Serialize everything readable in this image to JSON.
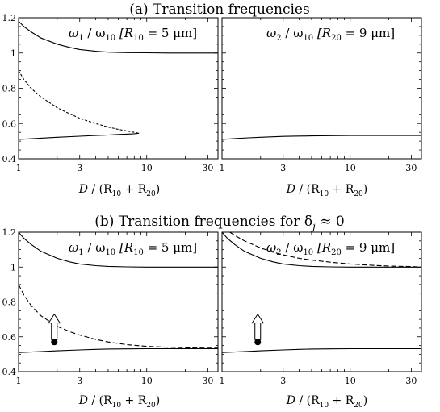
{
  "panel_a_title": "(a)  Transition frequencies",
  "panel_b_title": "(b)  Transition frequencies for δ",
  "panel_b_title_sub": "j",
  "panel_b_title_tail": " ≈ 0",
  "xlabel": {
    "main": "D",
    "pre": " / (R",
    "sub1": "10",
    "mid": " + R",
    "sub2": "20",
    "post": ")"
  },
  "panel_labels": {
    "left": {
      "w": "ω",
      "sub": "1",
      "over": " / ω",
      "sub2": "10",
      "bracket": "  [R",
      "rsub": "10",
      "tail": " = 5 μm]"
    },
    "right": {
      "w": "ω",
      "sub": "2",
      "over": " / ω",
      "sub2": "10",
      "bracket": "  [R",
      "rsub": "20",
      "tail": " = 9 μm]"
    }
  },
  "chart_data": [
    {
      "id": "a-left",
      "type": "line",
      "xscale": "log",
      "xlim": [
        1,
        36
      ],
      "ylim": [
        0.4,
        1.2
      ],
      "xticks": [
        1,
        3,
        10,
        30
      ],
      "yticks": [
        0.4,
        0.6,
        0.8,
        1.0,
        1.2
      ],
      "ytick_labels": [
        "0.4",
        "0.6",
        "0.8",
        "1",
        "1.2"
      ],
      "series": [
        {
          "style": "solid",
          "x": [
            1,
            1.1,
            1.25,
            1.5,
            2,
            2.5,
            3,
            4,
            5,
            7,
            10,
            15,
            20,
            30,
            36
          ],
          "y": [
            1.18,
            1.15,
            1.12,
            1.085,
            1.05,
            1.032,
            1.02,
            1.01,
            1.005,
            1.002,
            1.001,
            1.0,
            1.0,
            1.0,
            1.0
          ]
        },
        {
          "style": "dashed",
          "x": [
            1,
            1.1,
            1.25,
            1.5,
            2,
            2.5,
            3,
            4,
            5,
            6,
            7,
            8,
            8.7
          ],
          "y": [
            0.9,
            0.85,
            0.8,
            0.75,
            0.69,
            0.655,
            0.63,
            0.6,
            0.58,
            0.567,
            0.558,
            0.55,
            0.545
          ]
        },
        {
          "style": "solid",
          "x": [
            1,
            1.2,
            1.5,
            2,
            3,
            4,
            5,
            6,
            7,
            8,
            8.7
          ],
          "y": [
            0.51,
            0.513,
            0.517,
            0.522,
            0.528,
            0.532,
            0.535,
            0.538,
            0.54,
            0.542,
            0.545
          ]
        }
      ]
    },
    {
      "id": "a-right",
      "type": "line",
      "xscale": "log",
      "xlim": [
        1,
        36
      ],
      "ylim": [
        0.4,
        1.2
      ],
      "xticks": [
        1,
        3,
        10,
        30
      ],
      "yticks": [
        0.4,
        0.6,
        0.8,
        1.0,
        1.2
      ],
      "ytick_labels": [
        "",
        "",
        "",
        "",
        ""
      ],
      "series": [
        {
          "style": "solid",
          "x": [
            1,
            1.3,
            1.6,
            2,
            2.5,
            3,
            4,
            5,
            7,
            10,
            15,
            20,
            30,
            36
          ],
          "y": [
            0.51,
            0.515,
            0.519,
            0.522,
            0.525,
            0.527,
            0.529,
            0.53,
            0.531,
            0.532,
            0.532,
            0.532,
            0.532,
            0.532
          ]
        }
      ]
    },
    {
      "id": "b-left",
      "type": "line",
      "xscale": "log",
      "xlim": [
        1,
        36
      ],
      "ylim": [
        0.4,
        1.2
      ],
      "xticks": [
        1,
        3,
        10,
        30
      ],
      "yticks": [
        0.4,
        0.6,
        0.8,
        1.0,
        1.2
      ],
      "ytick_labels": [
        "0.4",
        "0.6",
        "0.8",
        "1",
        "1.2"
      ],
      "series": [
        {
          "style": "solid",
          "x": [
            1,
            1.1,
            1.25,
            1.5,
            2,
            2.5,
            3,
            4,
            5,
            7,
            10,
            15,
            20,
            30,
            36
          ],
          "y": [
            1.2,
            1.165,
            1.13,
            1.09,
            1.05,
            1.03,
            1.018,
            1.008,
            1.004,
            1.001,
            1.0,
            1.0,
            1.0,
            1.0,
            1.0
          ]
        },
        {
          "style": "dashed",
          "x": [
            1,
            1.1,
            1.25,
            1.5,
            2,
            2.5,
            3,
            4,
            5,
            7,
            10,
            15,
            20,
            30,
            36
          ],
          "y": [
            0.9,
            0.84,
            0.78,
            0.72,
            0.66,
            0.63,
            0.61,
            0.585,
            0.57,
            0.555,
            0.545,
            0.54,
            0.537,
            0.535,
            0.535
          ]
        },
        {
          "style": "solid",
          "x": [
            1,
            1.5,
            2,
            3,
            4,
            5,
            7,
            10,
            15,
            20,
            30,
            36
          ],
          "y": [
            0.51,
            0.515,
            0.52,
            0.525,
            0.528,
            0.53,
            0.531,
            0.532,
            0.532,
            0.532,
            0.532,
            0.532
          ]
        }
      ],
      "marker": {
        "x": 1.9,
        "y": 0.57,
        "arrow_to": 0.73
      }
    },
    {
      "id": "b-right",
      "type": "line",
      "xscale": "log",
      "xlim": [
        1,
        36
      ],
      "ylim": [
        0.4,
        1.2
      ],
      "xticks": [
        1,
        3,
        10,
        30
      ],
      "yticks": [
        0.4,
        0.6,
        0.8,
        1.0,
        1.2
      ],
      "ytick_labels": [
        "",
        "",
        "",
        "",
        ""
      ],
      "series": [
        {
          "style": "solid",
          "x": [
            1,
            1.1,
            1.25,
            1.5,
            2,
            2.5,
            3,
            4,
            5,
            7,
            10,
            15,
            20,
            30,
            36
          ],
          "y": [
            1.2,
            1.165,
            1.13,
            1.09,
            1.05,
            1.03,
            1.018,
            1.008,
            1.004,
            1.001,
            1.0,
            1.0,
            1.0,
            1.0,
            1.0
          ]
        },
        {
          "style": "dashed",
          "x": [
            1.15,
            1.3,
            1.5,
            2,
            2.5,
            3,
            4,
            5,
            7,
            10,
            15,
            20,
            30,
            36
          ],
          "y": [
            1.2,
            1.175,
            1.15,
            1.11,
            1.085,
            1.07,
            1.05,
            1.04,
            1.028,
            1.018,
            1.01,
            1.006,
            1.003,
            1.0
          ]
        },
        {
          "style": "solid",
          "x": [
            1,
            1.5,
            2,
            3,
            4,
            5,
            7,
            10,
            15,
            20,
            30,
            36
          ],
          "y": [
            0.51,
            0.515,
            0.52,
            0.525,
            0.528,
            0.53,
            0.531,
            0.532,
            0.532,
            0.532,
            0.532,
            0.532
          ]
        }
      ],
      "marker": {
        "x": 1.9,
        "y": 0.57,
        "arrow_to": 0.73
      }
    }
  ]
}
